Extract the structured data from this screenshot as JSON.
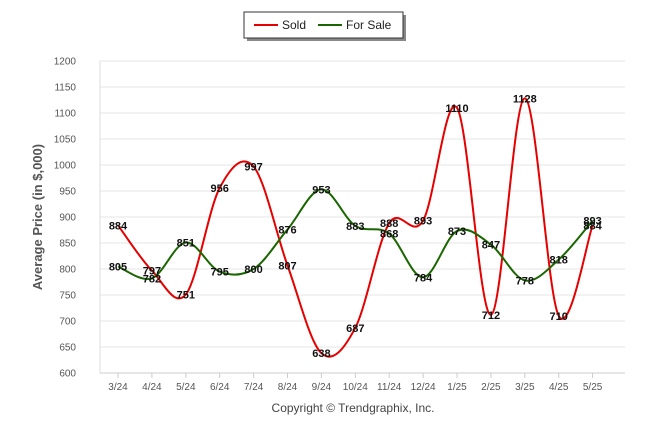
{
  "chart_data": {
    "type": "line",
    "ylabel": "Average Price (in $,000)",
    "ylim": [
      600,
      1200
    ],
    "yticks": [
      600,
      650,
      700,
      750,
      800,
      850,
      900,
      950,
      1000,
      1050,
      1100,
      1150,
      1200
    ],
    "categories": [
      "3/24",
      "4/24",
      "5/24",
      "6/24",
      "7/24",
      "8/24",
      "9/24",
      "10/24",
      "11/24",
      "12/24",
      "1/25",
      "2/25",
      "3/25",
      "4/25",
      "5/25"
    ],
    "grid": true,
    "legend": "top-center",
    "series": [
      {
        "name": "Sold",
        "color": "#e60000",
        "values": [
          884,
          797,
          751,
          956,
          997,
          807,
          638,
          687,
          888,
          893,
          1110,
          712,
          1128,
          710,
          884
        ]
      },
      {
        "name": "For Sale",
        "color": "#1a6600",
        "values": [
          805,
          782,
          851,
          795,
          800,
          876,
          953,
          883,
          868,
          784,
          873,
          847,
          778,
          818,
          893
        ]
      }
    ],
    "credit": "Copyright © Trendgraphix, Inc."
  }
}
